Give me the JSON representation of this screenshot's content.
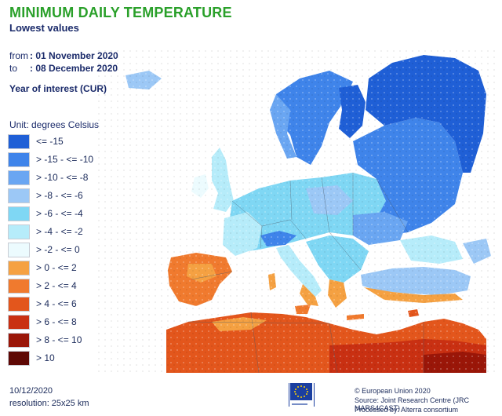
{
  "header": {
    "title": "MINIMUM DAILY TEMPERATURE",
    "subtitle": "Lowest values"
  },
  "period": {
    "from_label": "from",
    "from_value": ": 01 November 2020",
    "to_label": "to",
    "to_value": ": 08 December 2020"
  },
  "year_of_interest": "Year of interest (CUR)",
  "legend": {
    "unit": "Unit: degrees Celsius",
    "items": [
      {
        "label": "<= -15",
        "color": "#1f5fd6"
      },
      {
        "label": "> -15 - <= -10",
        "color": "#3f84ea"
      },
      {
        "label": "> -10 - <= -8",
        "color": "#6aa6f2"
      },
      {
        "label": "> -8 - <= -6",
        "color": "#9cc8f6"
      },
      {
        "label": "> -6 - <= -4",
        "color": "#7fd7f4"
      },
      {
        "label": "> -4 - <= -2",
        "color": "#b6ecfa"
      },
      {
        "label": "> -2 - <= 0",
        "color": "#ecfbfe"
      },
      {
        "label": "> 0 - <= 2",
        "color": "#f5a142"
      },
      {
        "label": "> 2 - <= 4",
        "color": "#f07a2e"
      },
      {
        "label": "> 4 - <= 6",
        "color": "#e3561c"
      },
      {
        "label": "> 6 - <= 8",
        "color": "#c93012"
      },
      {
        "label": "> 8 - <= 10",
        "color": "#9a1608"
      },
      {
        "label": "> 10",
        "color": "#5e0805"
      }
    ]
  },
  "footer": {
    "date": "10/12/2020",
    "resolution": "resolution: 25x25 km",
    "copyright": "© European Union 2020",
    "source": "Source: Joint Research Centre (JRC MARS4CAST)",
    "processed": "Processed by: Alterra consortium"
  }
}
